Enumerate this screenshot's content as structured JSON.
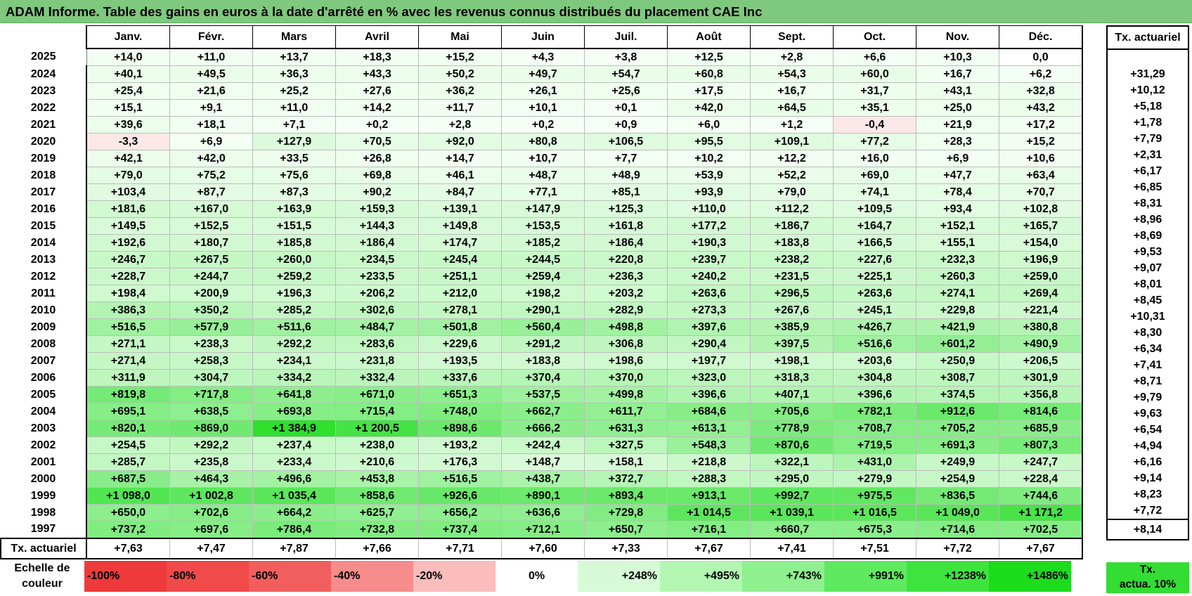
{
  "title": "ADAM Informe. Table des gains en euros à la date d'arrêté en % avec les revenus connus distribués du placement CAE Inc",
  "months": [
    "Janv.",
    "Févr.",
    "Mars",
    "Avril",
    "Mai",
    "Juin",
    "Juil.",
    "Août",
    "Sept.",
    "Oct.",
    "Nov.",
    "Déc."
  ],
  "actuarial_header": "Tx. actuariel",
  "rows": [
    {
      "year": "2025",
      "values": [
        "+14,0",
        "+11,0",
        "+13,7",
        "+18,3",
        "+15,2",
        "+4,3",
        "+3,8",
        "+12,5",
        "+2,8",
        "+6,6",
        "+10,3",
        "0,0"
      ],
      "rate": ""
    },
    {
      "year": "2024",
      "values": [
        "+40,1",
        "+49,5",
        "+36,3",
        "+43,3",
        "+50,2",
        "+49,7",
        "+54,7",
        "+60,8",
        "+54,3",
        "+60,0",
        "+16,7",
        "+6,2"
      ],
      "rate": "+31,29"
    },
    {
      "year": "2023",
      "values": [
        "+25,4",
        "+21,6",
        "+25,2",
        "+27,6",
        "+36,2",
        "+26,1",
        "+25,6",
        "+17,5",
        "+16,7",
        "+31,7",
        "+43,1",
        "+32,8"
      ],
      "rate": "+10,12"
    },
    {
      "year": "2022",
      "values": [
        "+15,1",
        "+9,1",
        "+11,0",
        "+14,2",
        "+11,7",
        "+10,1",
        "+0,1",
        "+42,0",
        "+64,5",
        "+35,1",
        "+25,0",
        "+43,2"
      ],
      "rate": "+5,18"
    },
    {
      "year": "2021",
      "values": [
        "+39,6",
        "+18,1",
        "+7,1",
        "+0,2",
        "+2,8",
        "+0,2",
        "+0,9",
        "+6,0",
        "+1,2",
        "-0,4",
        "+21,9",
        "+17,2"
      ],
      "rate": "+1,78"
    },
    {
      "year": "2020",
      "values": [
        "-3,3",
        "+6,9",
        "+127,9",
        "+70,5",
        "+92,0",
        "+80,8",
        "+106,5",
        "+95,5",
        "+109,1",
        "+77,2",
        "+28,3",
        "+15,2"
      ],
      "rate": "+7,79"
    },
    {
      "year": "2019",
      "values": [
        "+42,1",
        "+42,0",
        "+33,5",
        "+26,8",
        "+14,7",
        "+10,7",
        "+7,7",
        "+10,2",
        "+12,2",
        "+16,0",
        "+6,9",
        "+10,6"
      ],
      "rate": "+2,31"
    },
    {
      "year": "2018",
      "values": [
        "+79,0",
        "+75,2",
        "+75,6",
        "+69,8",
        "+46,1",
        "+48,7",
        "+48,9",
        "+53,9",
        "+52,2",
        "+69,0",
        "+47,7",
        "+63,4"
      ],
      "rate": "+6,17"
    },
    {
      "year": "2017",
      "values": [
        "+103,4",
        "+87,7",
        "+87,3",
        "+90,2",
        "+84,7",
        "+77,1",
        "+85,1",
        "+93,9",
        "+79,0",
        "+74,1",
        "+78,4",
        "+70,7"
      ],
      "rate": "+6,85"
    },
    {
      "year": "2016",
      "values": [
        "+181,6",
        "+167,0",
        "+163,9",
        "+159,3",
        "+139,1",
        "+147,9",
        "+125,3",
        "+110,0",
        "+112,2",
        "+109,5",
        "+93,4",
        "+102,8"
      ],
      "rate": "+8,31"
    },
    {
      "year": "2015",
      "values": [
        "+149,5",
        "+152,5",
        "+151,5",
        "+144,3",
        "+149,8",
        "+153,5",
        "+161,8",
        "+177,2",
        "+186,7",
        "+164,7",
        "+152,1",
        "+165,7"
      ],
      "rate": "+8,96"
    },
    {
      "year": "2014",
      "values": [
        "+192,6",
        "+180,7",
        "+185,8",
        "+186,4",
        "+174,7",
        "+185,2",
        "+186,4",
        "+190,3",
        "+183,8",
        "+166,5",
        "+155,1",
        "+154,0"
      ],
      "rate": "+8,69"
    },
    {
      "year": "2013",
      "values": [
        "+246,7",
        "+267,5",
        "+260,0",
        "+234,5",
        "+245,4",
        "+244,5",
        "+220,8",
        "+239,7",
        "+238,2",
        "+227,6",
        "+232,3",
        "+196,9"
      ],
      "rate": "+9,53"
    },
    {
      "year": "2012",
      "values": [
        "+228,7",
        "+244,7",
        "+259,2",
        "+233,5",
        "+251,1",
        "+259,4",
        "+236,3",
        "+240,2",
        "+231,5",
        "+225,1",
        "+260,3",
        "+259,0"
      ],
      "rate": "+9,07"
    },
    {
      "year": "2011",
      "values": [
        "+198,4",
        "+200,9",
        "+196,3",
        "+206,2",
        "+212,0",
        "+198,2",
        "+203,2",
        "+263,6",
        "+296,5",
        "+263,6",
        "+274,1",
        "+269,4"
      ],
      "rate": "+8,01"
    },
    {
      "year": "2010",
      "values": [
        "+386,3",
        "+350,2",
        "+285,2",
        "+302,6",
        "+278,1",
        "+290,1",
        "+282,9",
        "+273,3",
        "+267,6",
        "+245,1",
        "+229,8",
        "+221,4"
      ],
      "rate": "+8,45"
    },
    {
      "year": "2009",
      "values": [
        "+516,5",
        "+577,9",
        "+511,6",
        "+484,7",
        "+501,8",
        "+560,4",
        "+498,8",
        "+397,6",
        "+385,9",
        "+426,7",
        "+421,9",
        "+380,8"
      ],
      "rate": "+10,31"
    },
    {
      "year": "2008",
      "values": [
        "+271,1",
        "+238,3",
        "+292,2",
        "+283,6",
        "+229,6",
        "+291,2",
        "+306,8",
        "+290,4",
        "+397,5",
        "+516,6",
        "+601,2",
        "+490,9"
      ],
      "rate": "+8,30"
    },
    {
      "year": "2007",
      "values": [
        "+271,4",
        "+258,3",
        "+234,1",
        "+231,8",
        "+193,5",
        "+183,8",
        "+198,6",
        "+197,7",
        "+198,1",
        "+203,6",
        "+250,9",
        "+206,5"
      ],
      "rate": "+6,34"
    },
    {
      "year": "2006",
      "values": [
        "+311,9",
        "+304,7",
        "+334,2",
        "+332,4",
        "+337,6",
        "+370,4",
        "+370,0",
        "+323,0",
        "+318,3",
        "+304,8",
        "+308,7",
        "+301,9"
      ],
      "rate": "+7,41"
    },
    {
      "year": "2005",
      "values": [
        "+819,8",
        "+717,8",
        "+641,8",
        "+671,0",
        "+651,3",
        "+537,5",
        "+499,8",
        "+396,6",
        "+407,1",
        "+396,6",
        "+374,5",
        "+356,8"
      ],
      "rate": "+8,71"
    },
    {
      "year": "2004",
      "values": [
        "+695,1",
        "+638,5",
        "+693,8",
        "+715,4",
        "+748,0",
        "+662,7",
        "+611,7",
        "+684,6",
        "+705,6",
        "+782,1",
        "+912,6",
        "+814,6"
      ],
      "rate": "+9,79"
    },
    {
      "year": "2003",
      "values": [
        "+820,1",
        "+869,0",
        "+1 384,9",
        "+1 200,5",
        "+898,6",
        "+666,2",
        "+631,3",
        "+613,1",
        "+778,9",
        "+708,7",
        "+705,2",
        "+685,9"
      ],
      "rate": "+9,63"
    },
    {
      "year": "2002",
      "values": [
        "+254,5",
        "+292,2",
        "+237,4",
        "+238,0",
        "+193,2",
        "+242,4",
        "+327,5",
        "+548,3",
        "+870,6",
        "+719,5",
        "+691,3",
        "+807,3"
      ],
      "rate": "+6,54"
    },
    {
      "year": "2001",
      "values": [
        "+285,7",
        "+235,8",
        "+233,4",
        "+210,6",
        "+176,3",
        "+148,7",
        "+158,1",
        "+218,8",
        "+322,1",
        "+431,0",
        "+249,9",
        "+247,7"
      ],
      "rate": "+4,94"
    },
    {
      "year": "2000",
      "values": [
        "+687,5",
        "+464,3",
        "+496,6",
        "+453,8",
        "+516,5",
        "+438,7",
        "+372,7",
        "+288,3",
        "+295,0",
        "+279,9",
        "+254,9",
        "+228,4"
      ],
      "rate": "+6,16"
    },
    {
      "year": "1999",
      "values": [
        "+1 098,0",
        "+1 002,8",
        "+1 035,4",
        "+858,6",
        "+926,6",
        "+890,1",
        "+893,4",
        "+913,1",
        "+992,7",
        "+975,5",
        "+836,5",
        "+744,6"
      ],
      "rate": "+9,14"
    },
    {
      "year": "1998",
      "values": [
        "+650,0",
        "+702,6",
        "+664,2",
        "+625,7",
        "+656,2",
        "+636,6",
        "+729,8",
        "+1 014,5",
        "+1 039,1",
        "+1 016,5",
        "+1 049,0",
        "+1 171,2"
      ],
      "rate": "+8,23"
    },
    {
      "year": "1997",
      "values": [
        "+737,2",
        "+697,6",
        "+786,4",
        "+732,8",
        "+737,4",
        "+712,1",
        "+650,7",
        "+716,1",
        "+660,7",
        "+675,3",
        "+714,6",
        "+702,5"
      ],
      "rate": "+7,72"
    }
  ],
  "totals": {
    "label": "Tx. actuariel",
    "values": [
      "+7,63",
      "+7,47",
      "+7,87",
      "+7,66",
      "+7,71",
      "+7,60",
      "+7,33",
      "+7,67",
      "+7,41",
      "+7,51",
      "+7,72",
      "+7,67"
    ],
    "rate": "+8,14"
  },
  "scale": {
    "label_line1": "Echelle de",
    "label_line2": "couleur",
    "steps": [
      {
        "label": "-100%",
        "color": "#ee3a3a",
        "kind": "neg"
      },
      {
        "label": "-80%",
        "color": "#f04a4a",
        "kind": "neg"
      },
      {
        "label": "-60%",
        "color": "#f25e5e",
        "kind": "neg"
      },
      {
        "label": "-40%",
        "color": "#f68c8c",
        "kind": "neg"
      },
      {
        "label": "-20%",
        "color": "#fbbcbc",
        "kind": "neg"
      },
      {
        "label": "0%",
        "color": "#ffffff",
        "kind": "zero"
      },
      {
        "label": "+248%",
        "color": "#d6fad6",
        "kind": "pos"
      },
      {
        "label": "+495%",
        "color": "#b2f6b2",
        "kind": "pos"
      },
      {
        "label": "+743%",
        "color": "#8ef08e",
        "kind": "pos"
      },
      {
        "label": "+991%",
        "color": "#5eea5e",
        "kind": "pos"
      },
      {
        "label": "+1238%",
        "color": "#3ee43e",
        "kind": "pos"
      },
      {
        "label": "+1486%",
        "color": "#1cdc1c",
        "kind": "pos"
      }
    ],
    "legend_line1": "Tx.",
    "legend_line2": "actua. 10%"
  },
  "colors": {
    "title_bg": "#7ec97e",
    "negative": "#fde8e8",
    "zero": "#ffffff",
    "max_green": "#22dd22"
  }
}
